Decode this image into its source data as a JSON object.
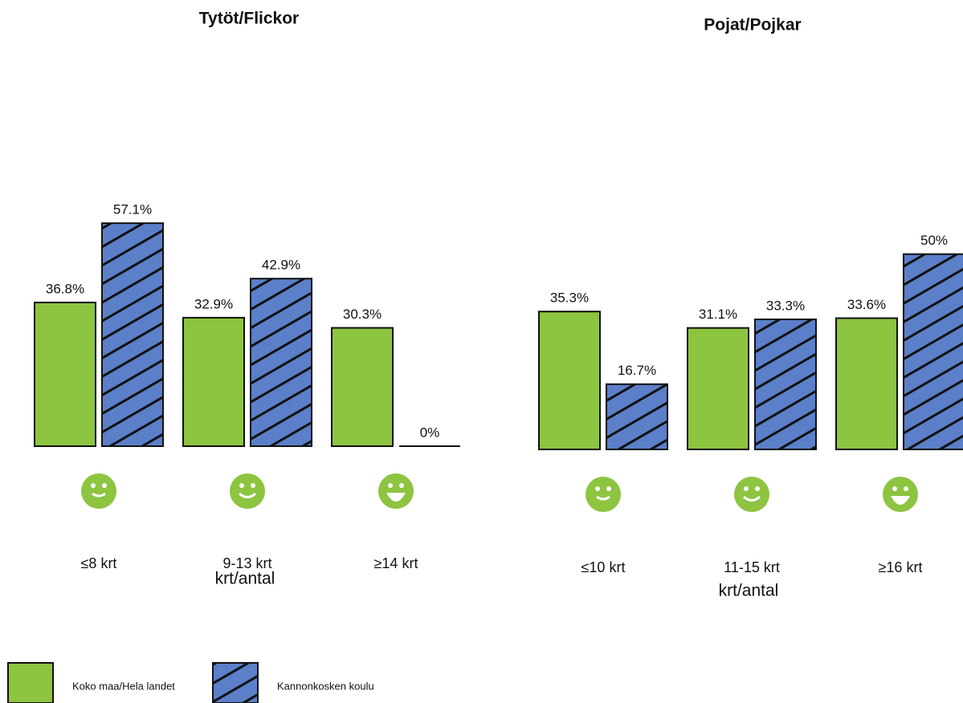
{
  "chart_data": [
    {
      "type": "bar",
      "title": "Tytöt/Flickor",
      "x_label": "krt/antal",
      "categories": [
        "≤8 krt",
        "9-13 krt",
        "≥14 krt"
      ],
      "ylim": [
        0,
        60
      ],
      "series": [
        {
          "name": "Koko maa/Hela landet",
          "color": "#8dc440",
          "values": [
            36.8,
            32.9,
            30.3
          ],
          "value_labels": [
            "36.8%",
            "32.9%",
            "30.3%"
          ]
        },
        {
          "name": "Kannonkosken koulu",
          "color": "#5b7fc8",
          "hatch": true,
          "values": [
            57.1,
            42.9,
            0
          ],
          "value_labels": [
            "57.1%",
            "42.9%",
            "0%"
          ]
        }
      ]
    },
    {
      "type": "bar",
      "title": "Pojat/Pojkar",
      "x_label": "krt/antal",
      "categories": [
        "≤10 krt",
        "11-15 krt",
        "≥16 krt"
      ],
      "ylim": [
        0,
        60
      ],
      "series": [
        {
          "color": "#8dc440",
          "values": [
            35.3,
            31.1,
            33.6
          ],
          "value_labels": [
            "35.3%",
            "31.1%",
            "33.6%"
          ]
        },
        {
          "color": "#5b7fc8",
          "hatch": true,
          "values": [
            16.7,
            33.3,
            50
          ],
          "value_labels": [
            "16.7%",
            "33.3%",
            "50%"
          ]
        }
      ]
    }
  ]
}
